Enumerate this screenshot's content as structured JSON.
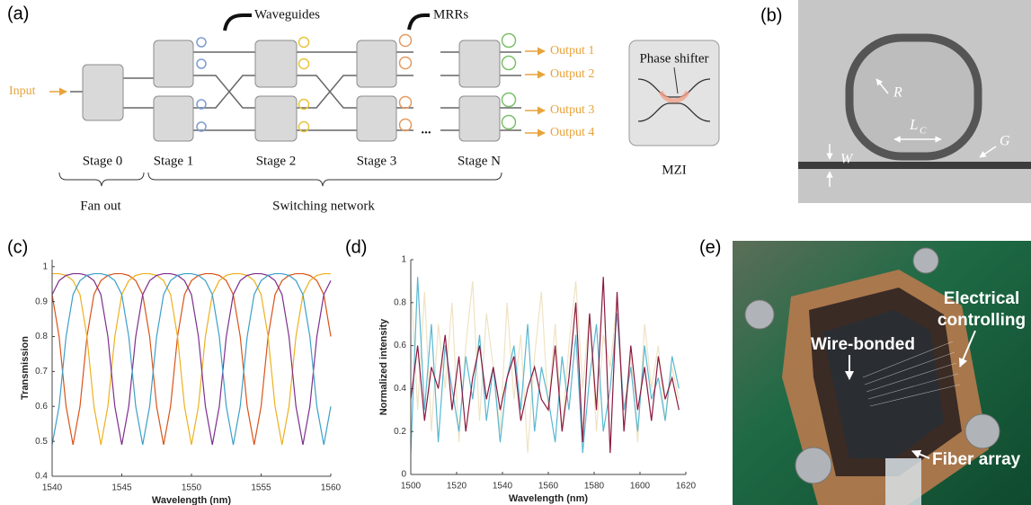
{
  "panel_labels": [
    "(a)",
    "(b)",
    "(c)",
    "(d)",
    "(e)"
  ],
  "diagram": {
    "input": "Input",
    "waveguides": "Waveguides",
    "mrrs": "MRRs",
    "outputs": [
      "Output 1",
      "Output 2",
      "Output 3",
      "Output 4"
    ],
    "stages": [
      "Stage 0",
      "Stage 1",
      "Stage 2",
      "Stage 3",
      "Stage N"
    ],
    "ellipsis": "...",
    "fan_out": "Fan out",
    "switching_network": "Switching network",
    "phase_shifter": "Phase shifter",
    "mzi": "MZI"
  },
  "micrograph": {
    "r": "R",
    "lc": "L",
    "lc_sub": "C",
    "g": "G",
    "w": "W"
  },
  "photo": {
    "electrical": [
      "Electrical",
      "controlling"
    ],
    "wire_bonded": "Wire-bonded",
    "fiber_array": "Fiber array"
  },
  "chart_data": [
    {
      "type": "line",
      "xlabel": "Wavelength (nm)",
      "ylabel": "Transmission",
      "x": [
        1540,
        1540.5,
        1541,
        1541.5,
        1542,
        1542.5,
        1543,
        1543.5,
        1544,
        1544.5,
        1545,
        1545.5,
        1546,
        1546.5,
        1547,
        1547.5,
        1548,
        1548.5,
        1549,
        1549.5,
        1550,
        1550.5,
        1551,
        1551.5,
        1552,
        1552.5,
        1553,
        1553.5,
        1554,
        1554.5,
        1555,
        1555.5,
        1556,
        1556.5,
        1557,
        1557.5,
        1558,
        1558.5,
        1559,
        1559.5,
        1560
      ],
      "xlim": [
        1540,
        1560
      ],
      "xticks": [
        1540,
        1545,
        1550,
        1555,
        1560
      ],
      "ylim": [
        0.4,
        1.02
      ],
      "yticks": [
        0.4,
        0.5,
        0.6,
        0.7,
        0.8,
        0.9,
        1
      ],
      "series": [
        {
          "color": "#d9541a",
          "values": [
            0.92,
            0.8,
            0.6,
            0.49,
            0.6,
            0.8,
            0.92,
            0.96,
            0.975,
            0.98,
            0.98,
            0.975,
            0.96,
            0.92,
            0.8,
            0.6,
            0.49,
            0.6,
            0.8,
            0.92,
            0.96,
            0.975,
            0.98,
            0.98,
            0.975,
            0.96,
            0.92,
            0.8,
            0.6,
            0.49,
            0.6,
            0.8,
            0.92,
            0.96,
            0.975,
            0.98,
            0.98,
            0.975,
            0.96,
            0.92,
            0.8
          ]
        },
        {
          "color": "#edb120",
          "values": [
            0.98,
            0.98,
            0.975,
            0.96,
            0.92,
            0.8,
            0.6,
            0.49,
            0.6,
            0.8,
            0.92,
            0.96,
            0.975,
            0.98,
            0.98,
            0.975,
            0.96,
            0.92,
            0.8,
            0.6,
            0.49,
            0.6,
            0.8,
            0.92,
            0.96,
            0.975,
            0.98,
            0.98,
            0.975,
            0.96,
            0.92,
            0.8,
            0.6,
            0.49,
            0.6,
            0.8,
            0.92,
            0.96,
            0.975,
            0.98,
            0.98
          ]
        },
        {
          "color": "#7e2f8e",
          "values": [
            0.92,
            0.96,
            0.975,
            0.98,
            0.98,
            0.975,
            0.96,
            0.92,
            0.8,
            0.6,
            0.49,
            0.6,
            0.8,
            0.92,
            0.96,
            0.975,
            0.98,
            0.98,
            0.975,
            0.96,
            0.92,
            0.8,
            0.6,
            0.49,
            0.6,
            0.8,
            0.92,
            0.96,
            0.975,
            0.98,
            0.98,
            0.975,
            0.96,
            0.92,
            0.8,
            0.6,
            0.49,
            0.6,
            0.8,
            0.92,
            0.96
          ]
        },
        {
          "color": "#3e9fc9",
          "values": [
            0.49,
            0.6,
            0.8,
            0.92,
            0.96,
            0.975,
            0.98,
            0.98,
            0.975,
            0.96,
            0.92,
            0.8,
            0.6,
            0.49,
            0.6,
            0.8,
            0.92,
            0.96,
            0.975,
            0.98,
            0.98,
            0.975,
            0.96,
            0.92,
            0.8,
            0.6,
            0.49,
            0.6,
            0.8,
            0.92,
            0.96,
            0.975,
            0.98,
            0.98,
            0.975,
            0.96,
            0.92,
            0.8,
            0.6,
            0.49,
            0.6
          ]
        }
      ]
    },
    {
      "type": "line",
      "xlabel": "Wavelength (nm)",
      "ylabel": "Normalized intensity",
      "x": [
        1500,
        1503,
        1506,
        1509,
        1512,
        1515,
        1518,
        1521,
        1524,
        1527,
        1530,
        1533,
        1536,
        1539,
        1542,
        1545,
        1548,
        1551,
        1554,
        1557,
        1560,
        1563,
        1566,
        1569,
        1572,
        1575,
        1578,
        1581,
        1584,
        1587,
        1590,
        1593,
        1596,
        1599,
        1602,
        1605,
        1608,
        1611,
        1614,
        1617
      ],
      "xlim": [
        1500,
        1620
      ],
      "xticks": [
        1500,
        1520,
        1540,
        1560,
        1580,
        1600,
        1620
      ],
      "ylim": [
        0,
        1
      ],
      "yticks": [
        0,
        0.2,
        0.4,
        0.6,
        0.8,
        1
      ],
      "series": [
        {
          "color": "#efe3c4",
          "values": [
            0.9,
            0.3,
            0.85,
            0.2,
            0.7,
            0.4,
            0.8,
            0.15,
            0.6,
            0.9,
            0.25,
            0.75,
            0.5,
            0.2,
            0.8,
            0.35,
            0.65,
            0.1,
            0.55,
            0.85,
            0.3,
            0.7,
            0.2,
            0.6,
            0.9,
            0.4,
            0.75,
            0.2,
            0.65,
            0.5,
            0.8,
            0.3,
            0.55,
            0.15,
            0.7,
            0.4,
            0.6,
            0.25,
            0.5,
            0.35
          ]
        },
        {
          "color": "#5ab8d2",
          "values": [
            0.1,
            0.92,
            0.3,
            0.7,
            0.15,
            0.6,
            0.4,
            0.2,
            0.55,
            0.35,
            0.65,
            0.25,
            0.5,
            0.15,
            0.45,
            0.6,
            0.3,
            0.7,
            0.2,
            0.5,
            0.35,
            0.15,
            0.55,
            0.3,
            0.65,
            0.1,
            0.45,
            0.7,
            0.2,
            0.4,
            0.75,
            0.3,
            0.5,
            0.2,
            0.6,
            0.35,
            0.45,
            0.25,
            0.55,
            0.4
          ]
        },
        {
          "color": "#8b1a3e",
          "values": [
            0.35,
            0.6,
            0.25,
            0.5,
            0.4,
            0.65,
            0.3,
            0.55,
            0.2,
            0.45,
            0.6,
            0.35,
            0.5,
            0.3,
            0.45,
            0.55,
            0.25,
            0.4,
            0.5,
            0.35,
            0.3,
            0.6,
            0.2,
            0.45,
            0.8,
            0.15,
            0.75,
            0.3,
            0.92,
            0.1,
            0.85,
            0.2,
            0.6,
            0.3,
            0.5,
            0.25,
            0.55,
            0.35,
            0.45,
            0.3
          ]
        }
      ]
    }
  ]
}
